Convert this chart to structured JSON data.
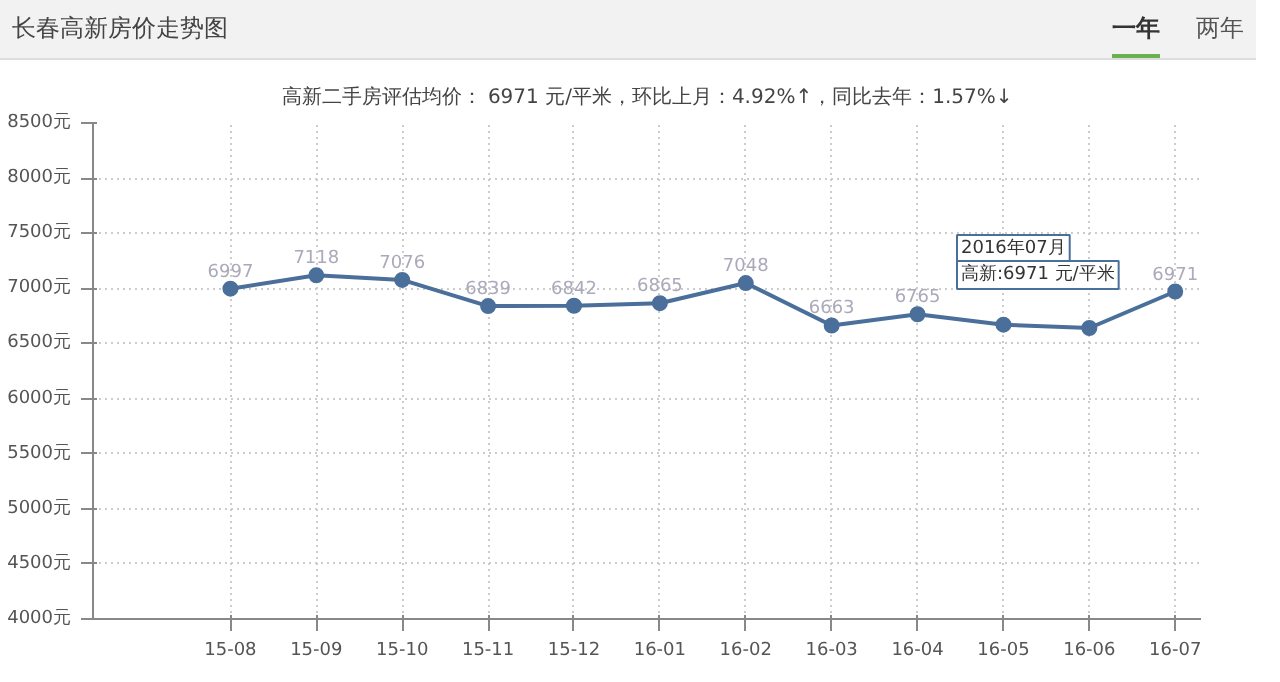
{
  "chart_data": {
    "type": "line",
    "title": "长春高新房价走势图",
    "subtitle": "高新二手房评估均价： 6971 元/平米，环比上月：4.92%↑，同比去年：1.57%↓",
    "categories": [
      "15-08",
      "15-09",
      "15-10",
      "15-11",
      "15-12",
      "16-01",
      "16-02",
      "16-03",
      "16-04",
      "16-05",
      "16-06",
      "16-07"
    ],
    "series": [
      {
        "color": "#4a6f9a",
        "values": [
          6997,
          7118,
          7076,
          6839,
          6842,
          6865,
          7048,
          6663,
          6765,
          6670,
          6640,
          6971
        ],
        "value_labels": [
          "6997",
          "7118",
          "7076",
          "6839",
          "6842",
          "6865",
          "7048",
          "6663",
          "6765",
          null,
          null,
          "6971"
        ]
      }
    ],
    "ylim": [
      4000,
      8500
    ],
    "yticks": [
      {
        "value": 4000,
        "label": "4000元"
      },
      {
        "value": 4500,
        "label": "4500元"
      },
      {
        "value": 5000,
        "label": "5000元"
      },
      {
        "value": 5500,
        "label": "5500元"
      },
      {
        "value": 6000,
        "label": "6000元"
      },
      {
        "value": 6500,
        "label": "6500元"
      },
      {
        "value": 7000,
        "label": "7000元"
      },
      {
        "value": 7500,
        "label": "7500元"
      },
      {
        "value": 8000,
        "label": "8000元"
      },
      {
        "value": 8500,
        "label": "8500元"
      }
    ],
    "grid": true,
    "marker": "circle",
    "line_style": "solid",
    "annotations": [
      "2016年07月",
      "高新:6971 元/平米",
      "一年",
      "两年"
    ]
  }
}
